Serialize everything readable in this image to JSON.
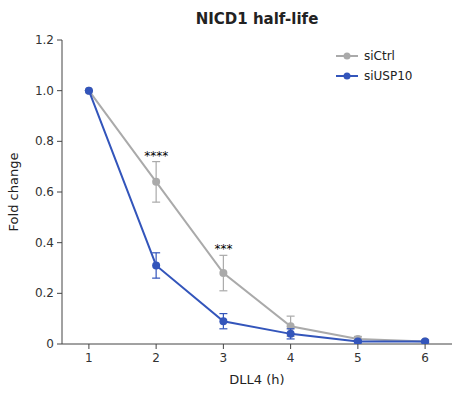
{
  "chart_data": {
    "type": "line",
    "title": "NICD1 half-life",
    "xlabel": "DLL4 (h)",
    "ylabel": "Fold change",
    "x": [
      1,
      2,
      3,
      4,
      5,
      6
    ],
    "series": [
      {
        "name": "siCtrl",
        "color": "#aaaaaa",
        "marker": "circle",
        "values": [
          1.0,
          0.64,
          0.28,
          0.07,
          0.02,
          0.01
        ],
        "errors": [
          0.0,
          0.08,
          0.07,
          0.04,
          0.01,
          0.005
        ]
      },
      {
        "name": "siUSP10",
        "color": "#3355bb",
        "marker": "circle",
        "values": [
          1.0,
          0.31,
          0.09,
          0.04,
          0.01,
          0.01
        ],
        "errors": [
          0.0,
          0.05,
          0.03,
          0.02,
          0.005,
          0.005
        ]
      }
    ],
    "xlim": [
      0.6,
      6.4
    ],
    "xticks": [
      1,
      2,
      3,
      4,
      5,
      6
    ],
    "ylim": [
      0,
      1.2
    ],
    "yticks": [
      0,
      0.2,
      0.4,
      0.6,
      0.8,
      {
        "value": 1.0,
        "label": "1.0"
      },
      1.2
    ],
    "annotations": [
      {
        "text": "****",
        "x": 2,
        "y": 0.72
      },
      {
        "text": "***",
        "x": 3,
        "y": 0.35
      }
    ],
    "legend": "upper right",
    "grid": false
  }
}
